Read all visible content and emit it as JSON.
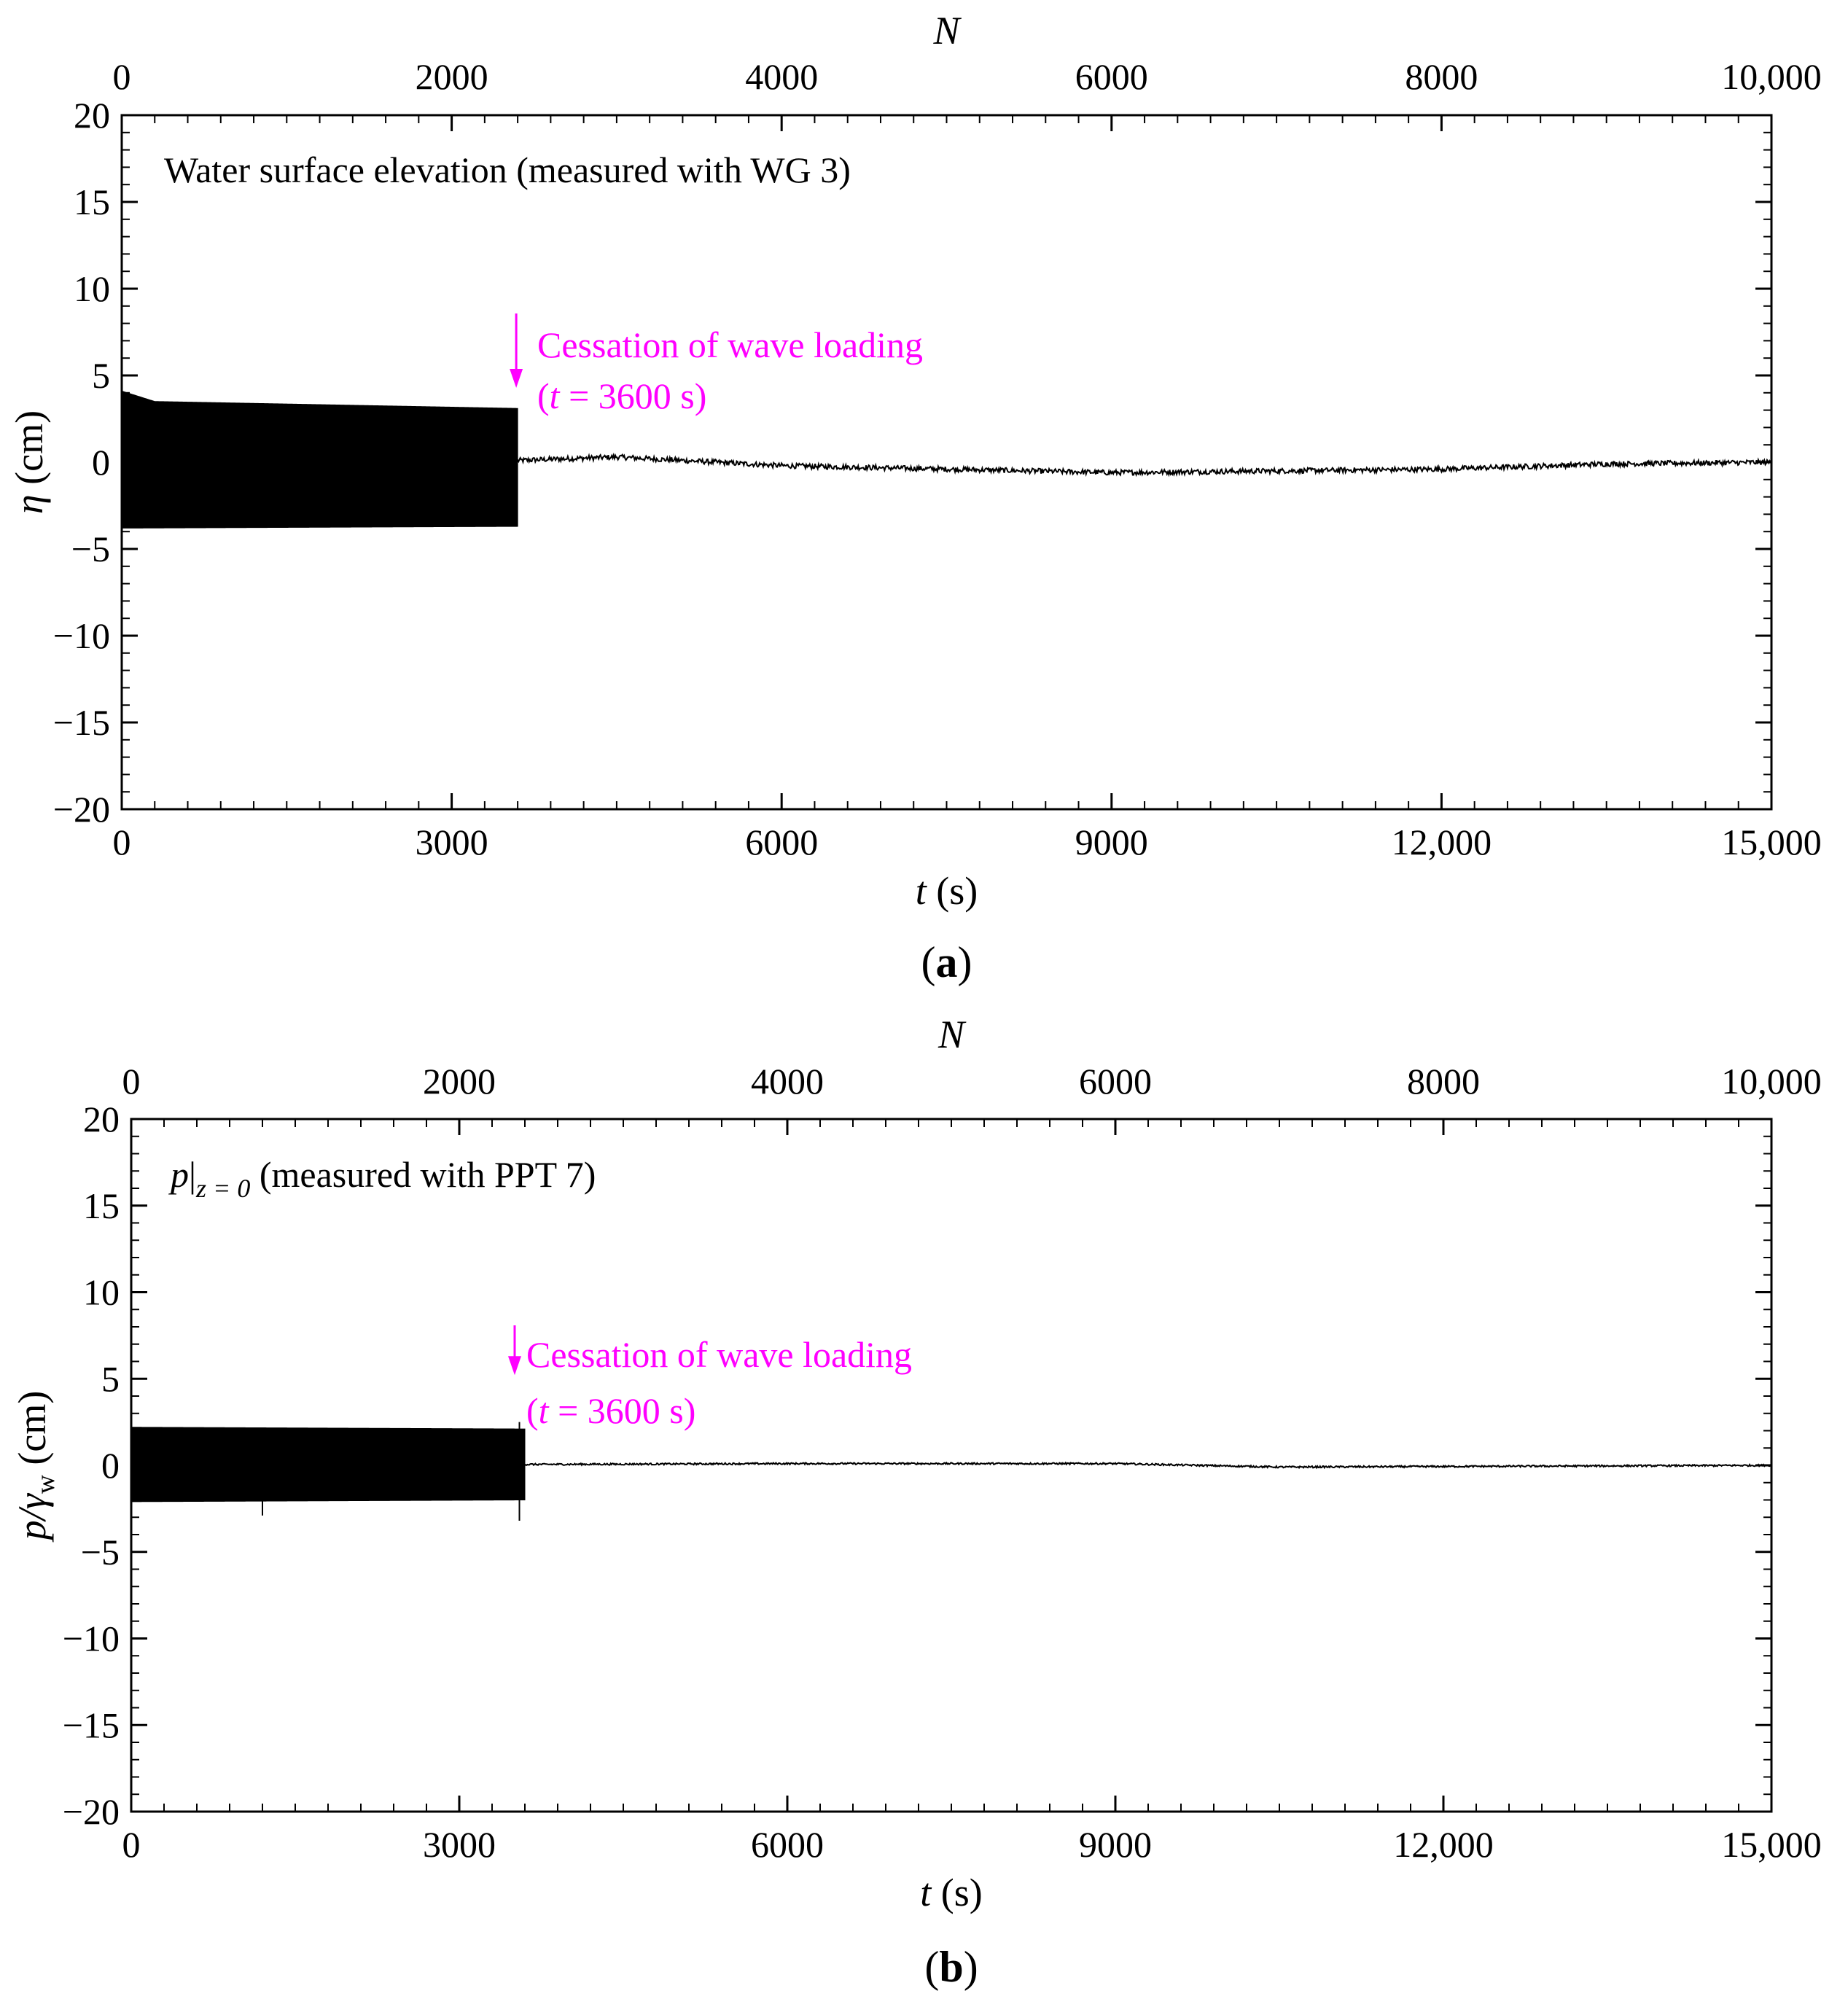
{
  "chart_data": [
    {
      "type": "line",
      "panel_label": "a",
      "inner_label": "Water surface elevation (measured with WG 3)",
      "xlabel_var": "t",
      "xlabel_unit": "(s)",
      "top_xlabel": "N",
      "ylabel_var": "η",
      "ylabel_unit": "(cm)",
      "xlim": [
        0,
        15000
      ],
      "top_xlim": [
        0,
        10000
      ],
      "ylim": [
        -20,
        20
      ],
      "xticks": [
        "0",
        "3000",
        "6000",
        "9000",
        "12,000",
        "15,000"
      ],
      "top_xticks": [
        "0",
        "2000",
        "4000",
        "6000",
        "8000",
        "10,000"
      ],
      "yticks": [
        "20",
        "15",
        "10",
        "5",
        "0",
        "−5",
        "−10",
        "−15",
        "−20"
      ],
      "annotation": {
        "line1": "Cessation of wave loading",
        "line2_var": "t",
        "line2_rest": " = 3600 s)",
        "line2_open": "(",
        "color": "#ff00ff",
        "x": 3600
      },
      "series": [
        {
          "color": "#000000",
          "wave_band": {
            "t_start": 0,
            "t_end": 3600,
            "upper": [
              [
                0,
                4.1
              ],
              [
                300,
                3.5
              ],
              [
                3600,
                3.1
              ]
            ],
            "lower": [
              [
                0,
                -3.8
              ],
              [
                3600,
                -3.7
              ]
            ]
          },
          "trend": [
            [
              3600,
              0.1
            ],
            [
              4500,
              0.3
            ],
            [
              6000,
              -0.2
            ],
            [
              7500,
              -0.4
            ],
            [
              9000,
              -0.6
            ],
            [
              10500,
              -0.5
            ],
            [
              12000,
              -0.4
            ],
            [
              13500,
              -0.1
            ],
            [
              15000,
              0.0
            ]
          ],
          "noise_amplitude": 0.15
        }
      ]
    },
    {
      "type": "line",
      "panel_label": "b",
      "inner_label_var": "p",
      "inner_label_sub": "z = 0",
      "inner_label_rest": " (measured with PPT 7)",
      "xlabel_var": "t",
      "xlabel_unit": "(s)",
      "top_xlabel": "N",
      "ylabel_var": "p/γ",
      "ylabel_sub": "w",
      "ylabel_unit": " (cm)",
      "xlim": [
        0,
        15000
      ],
      "top_xlim": [
        0,
        10000
      ],
      "ylim": [
        -20,
        20
      ],
      "xticks": [
        "0",
        "3000",
        "6000",
        "9000",
        "12,000",
        "15,000"
      ],
      "top_xticks": [
        "0",
        "2000",
        "4000",
        "6000",
        "8000",
        "10,000"
      ],
      "yticks": [
        "20",
        "15",
        "10",
        "5",
        "0",
        "−5",
        "−10",
        "−15",
        "−20"
      ],
      "annotation": {
        "line1": "Cessation of wave loading",
        "line2_var": "t",
        "line2_rest": " = 3600 s)",
        "line2_open": "(",
        "color": "#ff00ff",
        "x": 3600
      },
      "series": [
        {
          "color": "#000000",
          "wave_band": {
            "t_start": 0,
            "t_end": 3600,
            "upper": [
              [
                0,
                2.2
              ],
              [
                3600,
                2.1
              ]
            ],
            "lower": [
              [
                0,
                -2.1
              ],
              [
                3600,
                -2.0
              ]
            ]
          },
          "spikes": [
            [
              1200,
              -2.9
            ],
            [
              3550,
              -3.2
            ],
            [
              3550,
              2.5
            ]
          ],
          "trend": [
            [
              3600,
              0.05
            ],
            [
              6000,
              0.1
            ],
            [
              9000,
              0.1
            ],
            [
              10500,
              -0.1
            ],
            [
              15000,
              0.0
            ]
          ],
          "noise_amplitude": 0.05
        }
      ]
    }
  ]
}
